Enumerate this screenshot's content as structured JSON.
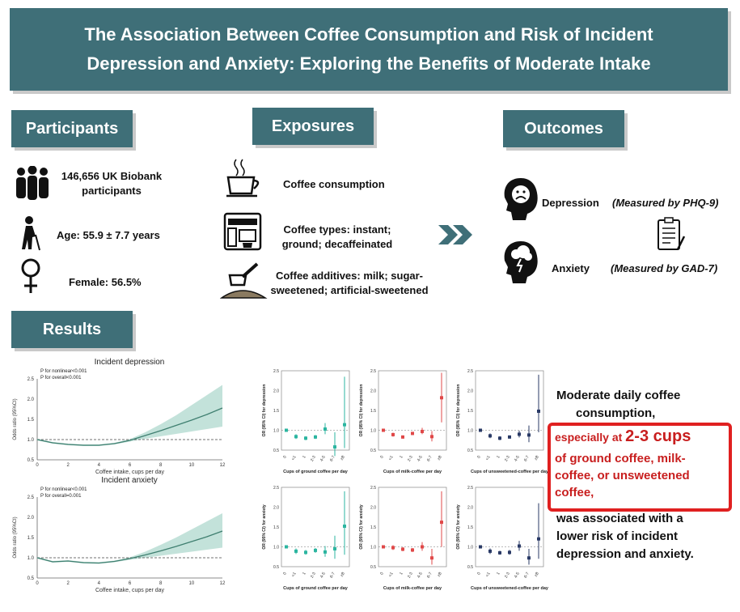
{
  "title": {
    "line1": "The Association Between Coffee Consumption and Risk of Incident",
    "line2": "Depression and Anxiety: Exploring the Benefits of Moderate Intake"
  },
  "sections": {
    "participants": "Participants",
    "exposures": "Exposures",
    "outcomes": "Outcomes",
    "results": "Results"
  },
  "participants": {
    "count_line1": "146,656 UK Biobank",
    "count_line2": "participants",
    "age": "Age: 55.9 ± 7.7 years",
    "female": "Female: 56.5%"
  },
  "exposures": {
    "consumption": "Coffee consumption",
    "types_line1": "Coffee types: instant;",
    "types_line2": "ground; decaffeinated",
    "additives_line1": "Coffee additives: milk; sugar-",
    "additives_line2": "sweetened; artificial-sweetened"
  },
  "outcomes": {
    "depression": "Depression",
    "depression_measure": "(Measured by PHQ-9)",
    "anxiety": "Anxiety",
    "anxiety_measure": "(Measured by GAD-7)"
  },
  "icons": [
    "people-icon",
    "elderly-icon",
    "female-symbol-icon",
    "coffee-cup-icon",
    "coffee-machine-icon",
    "coffee-scoop-icon",
    "arrow-chevrons-icon",
    "sad-head-icon",
    "storm-head-icon",
    "questionnaire-icon"
  ],
  "conclusion": {
    "line1": "Moderate daily coffee",
    "line2": "consumption,",
    "highlight_prefix": "especially at ",
    "highlight_big": "2-3 cups",
    "highlight_line2": "of ground coffee, milk-",
    "highlight_line3": "coffee, or unsweetened",
    "highlight_line4": "coffee,",
    "line3": "was associated with a",
    "line4": "lower risk of incident",
    "line5": "depression and anxiety."
  },
  "colors": {
    "banner": "#3f6f78",
    "highlight": "#c81e1e",
    "teal": "#2bb5a0",
    "red": "#e04848",
    "navy": "#2a3a66"
  },
  "chart_data": [
    {
      "type": "line",
      "title": "Incident depression",
      "annotations": [
        "P for nonlinear<0.001",
        "P for overall<0.001"
      ],
      "xlabel": "Coffee intake, cups per day",
      "ylabel": "Odds ratio (95%CI)",
      "xlim": [
        0,
        12
      ],
      "ylim": [
        0.5,
        2.5
      ],
      "xticks": [
        "0",
        "2",
        "4",
        "6",
        "8",
        "10",
        "12"
      ],
      "yticks": [
        "0.5",
        "1.0",
        "1.5",
        "2.0",
        "2.5"
      ],
      "reference_line": 1.0,
      "x": [
        0,
        1,
        2,
        3,
        4,
        5,
        6,
        7,
        8,
        9,
        10,
        11,
        12
      ],
      "y": [
        1.0,
        0.92,
        0.88,
        0.86,
        0.86,
        0.9,
        0.98,
        1.1,
        1.22,
        1.35,
        1.48,
        1.62,
        1.78
      ],
      "lower": [
        0.98,
        0.9,
        0.86,
        0.84,
        0.84,
        0.88,
        0.95,
        1.02,
        1.08,
        1.14,
        1.2,
        1.26,
        1.32
      ],
      "upper": [
        1.02,
        0.94,
        0.9,
        0.88,
        0.88,
        0.92,
        1.01,
        1.18,
        1.38,
        1.6,
        1.85,
        2.1,
        2.35
      ]
    },
    {
      "type": "line",
      "title": "Incident anxiety",
      "annotations": [
        "P for nonlinear<0.001",
        "P for overall=0.001"
      ],
      "xlabel": "Coffee intake, cups per day",
      "ylabel": "Odds ratio (95%CI)",
      "xlim": [
        0,
        12
      ],
      "ylim": [
        0.5,
        2.5
      ],
      "xticks": [
        "0",
        "2",
        "4",
        "6",
        "8",
        "10",
        "12"
      ],
      "yticks": [
        "0.5",
        "1.0",
        "1.5",
        "2.0",
        "2.5"
      ],
      "reference_line": 1.0,
      "x": [
        0,
        1,
        2,
        3,
        4,
        5,
        6,
        7,
        8,
        9,
        10,
        11,
        12
      ],
      "y": [
        1.0,
        0.9,
        0.92,
        0.88,
        0.87,
        0.91,
        0.98,
        1.07,
        1.17,
        1.28,
        1.4,
        1.52,
        1.66
      ],
      "lower": [
        0.98,
        0.88,
        0.9,
        0.86,
        0.85,
        0.89,
        0.95,
        1.0,
        1.05,
        1.1,
        1.15,
        1.2,
        1.25
      ],
      "upper": [
        1.02,
        0.92,
        0.94,
        0.9,
        0.89,
        0.93,
        1.01,
        1.15,
        1.32,
        1.5,
        1.7,
        1.9,
        2.1
      ]
    },
    {
      "type": "scatter",
      "panel": "ground-depression",
      "color": "#2bb5a0",
      "xlabel": "Cups of ground coffee per day",
      "ylabel": "OR (95% CI) for depression",
      "ylim": [
        0.5,
        2.5
      ],
      "yticks": [
        "0.5",
        "1.0",
        "1.5",
        "2.0",
        "2.5"
      ],
      "categories": [
        "0",
        "<1",
        "1",
        "2-3",
        "4-5",
        "6-7",
        "≥8"
      ],
      "values": [
        1.0,
        0.84,
        0.8,
        0.83,
        1.03,
        0.58,
        1.14
      ],
      "lower": [
        1.0,
        0.78,
        0.75,
        0.78,
        0.9,
        0.35,
        0.55
      ],
      "upper": [
        1.0,
        0.9,
        0.85,
        0.88,
        1.18,
        0.95,
        2.35
      ]
    },
    {
      "type": "scatter",
      "panel": "milk-depression",
      "color": "#e04848",
      "xlabel": "Cups of milk-coffee per day",
      "ylabel": "OR (95% CI) for depression",
      "ylim": [
        0.5,
        2.5
      ],
      "yticks": [
        "0.5",
        "1.0",
        "1.5",
        "2.0",
        "2.5"
      ],
      "categories": [
        "0",
        "<1",
        "1",
        "2-3",
        "4-5",
        "6-7",
        "≥8"
      ],
      "values": [
        1.0,
        0.89,
        0.83,
        0.92,
        0.97,
        0.84,
        1.82
      ],
      "lower": [
        1.0,
        0.84,
        0.79,
        0.88,
        0.9,
        0.72,
        1.2
      ],
      "upper": [
        1.0,
        0.94,
        0.87,
        0.96,
        1.06,
        0.98,
        2.45
      ]
    },
    {
      "type": "scatter",
      "panel": "unsweetened-depression",
      "color": "#2a3a66",
      "xlabel": "Cups of unsweetened-coffee per day",
      "ylabel": "OR (95% CI) for depression",
      "ylim": [
        0.5,
        2.5
      ],
      "yticks": [
        "0.5",
        "1.0",
        "1.5",
        "2.0",
        "2.5"
      ],
      "categories": [
        "0",
        "<1",
        "1",
        "2-3",
        "4-5",
        "6-7",
        "≥8"
      ],
      "values": [
        1.0,
        0.86,
        0.8,
        0.83,
        0.9,
        0.88,
        1.48
      ],
      "lower": [
        1.0,
        0.8,
        0.75,
        0.79,
        0.82,
        0.7,
        0.95
      ],
      "upper": [
        1.0,
        0.92,
        0.85,
        0.87,
        0.99,
        1.12,
        2.4
      ]
    },
    {
      "type": "scatter",
      "panel": "ground-anxiety",
      "color": "#2bb5a0",
      "xlabel": "Cups of ground coffee per day",
      "ylabel": "OR (95% CI) for anxiety",
      "ylim": [
        0.5,
        2.5
      ],
      "yticks": [
        "0.5",
        "1.0",
        "1.5",
        "2.0",
        "2.5"
      ],
      "categories": [
        "0",
        "<1",
        "1",
        "2-3",
        "4-5",
        "6-7",
        "≥8"
      ],
      "values": [
        1.0,
        0.89,
        0.86,
        0.91,
        0.87,
        0.95,
        1.52
      ],
      "lower": [
        1.0,
        0.82,
        0.8,
        0.85,
        0.75,
        0.7,
        0.8
      ],
      "upper": [
        1.0,
        0.96,
        0.92,
        0.97,
        1.02,
        1.28,
        2.4
      ]
    },
    {
      "type": "scatter",
      "panel": "milk-anxiety",
      "color": "#e04848",
      "xlabel": "Cups of milk-coffee per day",
      "ylabel": "OR (95% CI) for anxiety",
      "ylim": [
        0.5,
        2.5
      ],
      "yticks": [
        "0.5",
        "1.0",
        "1.5",
        "2.0",
        "2.5"
      ],
      "categories": [
        "0",
        "<1",
        "1",
        "2-3",
        "4-5",
        "6-7",
        "≥8"
      ],
      "values": [
        1.0,
        0.98,
        0.94,
        0.92,
        1.0,
        0.72,
        1.62
      ],
      "lower": [
        1.0,
        0.92,
        0.89,
        0.87,
        0.9,
        0.55,
        1.0
      ],
      "upper": [
        1.0,
        1.04,
        0.99,
        0.97,
        1.12,
        0.95,
        2.4
      ]
    },
    {
      "type": "scatter",
      "panel": "unsweetened-anxiety",
      "color": "#2a3a66",
      "xlabel": "Cups of unsweetened-coffee per day",
      "ylabel": "OR (95% CI) for anxiety",
      "ylim": [
        0.5,
        2.5
      ],
      "yticks": [
        "0.5",
        "1.0",
        "1.5",
        "2.0",
        "2.5"
      ],
      "categories": [
        "0",
        "<1",
        "1",
        "2-3",
        "4-5",
        "6-7",
        "≥8"
      ],
      "values": [
        1.0,
        0.89,
        0.85,
        0.86,
        1.02,
        0.72,
        1.2
      ],
      "lower": [
        1.0,
        0.82,
        0.8,
        0.8,
        0.9,
        0.55,
        0.7
      ],
      "upper": [
        1.0,
        0.96,
        0.9,
        0.92,
        1.15,
        0.95,
        2.1
      ]
    }
  ]
}
